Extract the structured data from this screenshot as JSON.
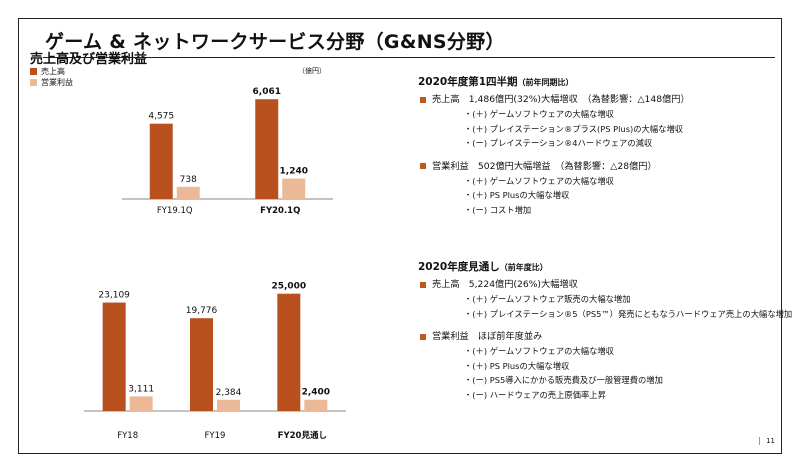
{
  "slide": {
    "title": "ゲーム & ネットワークサービス分野（G&NS分野）",
    "page_number": "11"
  },
  "chart_section": {
    "title": "売上高及び営業利益",
    "unit": "（億円）",
    "legend": [
      "売上高",
      "営業利益"
    ],
    "colors": {
      "sales": "#b9511f",
      "op_income": "#ebb898"
    }
  },
  "chart_data": [
    {
      "type": "bar",
      "categories": [
        "FY19.1Q",
        "FY20.1Q"
      ],
      "category_bold": [
        false,
        true
      ],
      "series": [
        {
          "name": "売上高",
          "values": [
            4575,
            6061
          ],
          "labels": [
            "4,575",
            "6,061"
          ],
          "bold": [
            false,
            true
          ]
        },
        {
          "name": "営業利益",
          "values": [
            738,
            1240
          ],
          "labels": [
            "738",
            "1,240"
          ],
          "bold": [
            false,
            true
          ]
        }
      ],
      "ylim": [
        0,
        6500
      ]
    },
    {
      "type": "bar",
      "categories": [
        "FY18",
        "FY19",
        "FY20見通し"
      ],
      "category_bold": [
        false,
        false,
        true
      ],
      "series": [
        {
          "name": "売上高",
          "values": [
            23109,
            19776,
            25000
          ],
          "labels": [
            "23,109",
            "19,776",
            "25,000"
          ],
          "bold": [
            false,
            false,
            true
          ]
        },
        {
          "name": "営業利益",
          "values": [
            3111,
            2384,
            2400
          ],
          "labels": [
            "3,111",
            "2,384",
            "2,400"
          ],
          "bold": [
            false,
            false,
            true
          ]
        }
      ],
      "ylim": [
        0,
        26000
      ]
    }
  ],
  "q1": {
    "heading": "2020年度第1四半期",
    "heading_note": "（前年同期比）",
    "sales_line": "売上高　1,486億円(32%)大幅増収　（為替影響：△148億円）",
    "sales_items": [
      "・(＋) ゲームソフトウェアの大幅な増収",
      "・(＋) プレイステーション®プラス(PS Plus)の大幅な増収",
      "・(ー) プレイステーション®4ハードウェアの減収"
    ],
    "op_line": "営業利益　502億円大幅増益　（為替影響：△28億円）",
    "op_items": [
      "・(＋) ゲームソフトウェアの大幅な増収",
      "・(＋) PS Plusの大幅な増収",
      "・(ー) コスト増加"
    ]
  },
  "forecast": {
    "heading": "2020年度見通し",
    "heading_note": "（前年度比）",
    "sales_line": "売上高　5,224億円(26%)大幅増収",
    "sales_items": [
      "・(＋) ゲームソフトウェア販売の大幅な増加",
      "・(＋) プレイステーション®5（PS5™）発売にともなうハードウェア売上の大幅な増加"
    ],
    "op_line": "営業利益　ほぼ前年度並み",
    "op_items": [
      "・(＋) ゲームソフトウェアの大幅な増収",
      "・(＋) PS Plusの大幅な増収",
      "・(ー) PS5導入にかかる販売費及び一般管理費の増加",
      "・(ー) ハードウェアの売上原価率上昇"
    ]
  }
}
